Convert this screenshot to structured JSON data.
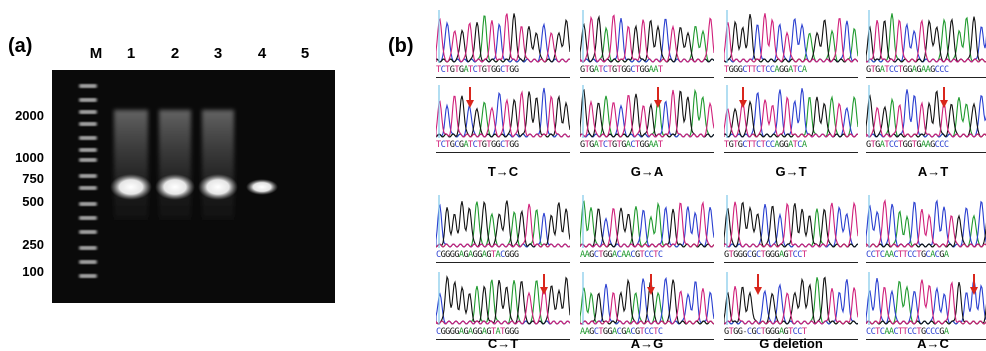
{
  "panel_a": {
    "label": "(a)",
    "lanes": [
      "M",
      "1",
      "2",
      "3",
      "4",
      "5"
    ],
    "ladder": [
      "2000",
      "1000",
      "750",
      "500",
      "250",
      "100"
    ]
  },
  "panel_b": {
    "label": "(b)",
    "rows": [
      {
        "pairs": [
          {
            "wt": "TCTGTGATCTGTGGCTGG",
            "mut": "TCTGCGATCTGTGGCTGG",
            "label": "T→C"
          },
          {
            "wt": "GTGATCTGTGGCTGGAAT",
            "mut": "GTGATCTGTGACTGGAAT",
            "label": "G→A"
          },
          {
            "wt": "TGGGCTTCTCCAGGATCA",
            "mut": "TGTGCTTCTCCAGGATCA",
            "label": "G→T"
          },
          {
            "wt": "GTGATCCTGGAGAAGCCC",
            "mut": "GTGATCCTGGTGAAGCCC",
            "label": "A→T"
          }
        ]
      },
      {
        "pairs": [
          {
            "wt": "CGGGGAGAGGAGTACGGG",
            "mut": "CGGGGAGAGGAGTATGGG",
            "label": "C→T"
          },
          {
            "wt": "AAGCTGGACAACGTCCTC",
            "mut": "AAGCTGGACGACGTCCTC",
            "label": "A→G"
          },
          {
            "wt": "GTGGGCGCTGGGAGTCCT",
            "mut": "GTGG-CGCTGGGAGTCCT",
            "label": "G deletion"
          },
          {
            "wt": "CCTCAACTTCCTGCACGA",
            "mut": "CCTCAACTTCCTGCCCGA",
            "label": "A→C"
          }
        ]
      }
    ],
    "base_colors": {
      "A": "#1f9a2e",
      "C": "#2a3fd0",
      "G": "#111111",
      "T": "#d0207a",
      "-": "#555555"
    },
    "arrow_color": "#d9261c"
  }
}
